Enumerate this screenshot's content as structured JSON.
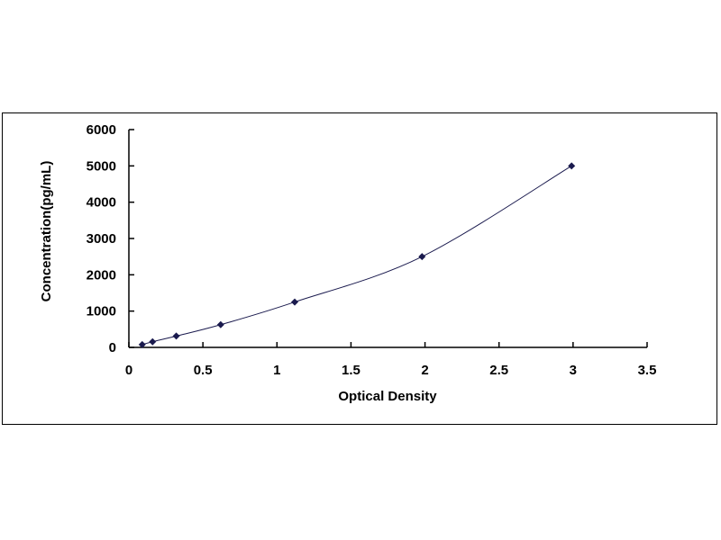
{
  "chart_data": {
    "type": "scatter",
    "title": "",
    "xlabel": "Optical Density",
    "ylabel": "Concentration(pg/mL)",
    "xlim": [
      0,
      3.5
    ],
    "ylim": [
      0,
      6000
    ],
    "xticks": [
      "0",
      "0.5",
      "1",
      "1.5",
      "2",
      "2.5",
      "3",
      "3.5"
    ],
    "yticks": [
      "0",
      "1000",
      "2000",
      "3000",
      "4000",
      "5000",
      "6000"
    ],
    "grid": false,
    "legend": "none",
    "series": [
      {
        "x": [
          0.09,
          0.16,
          0.32,
          0.62,
          1.12,
          1.98,
          2.99
        ],
        "y": [
          78,
          156,
          312,
          625,
          1250,
          2500,
          5000
        ],
        "marker": "diamond",
        "line": "smooth",
        "color": "#1a1a4e"
      }
    ]
  }
}
